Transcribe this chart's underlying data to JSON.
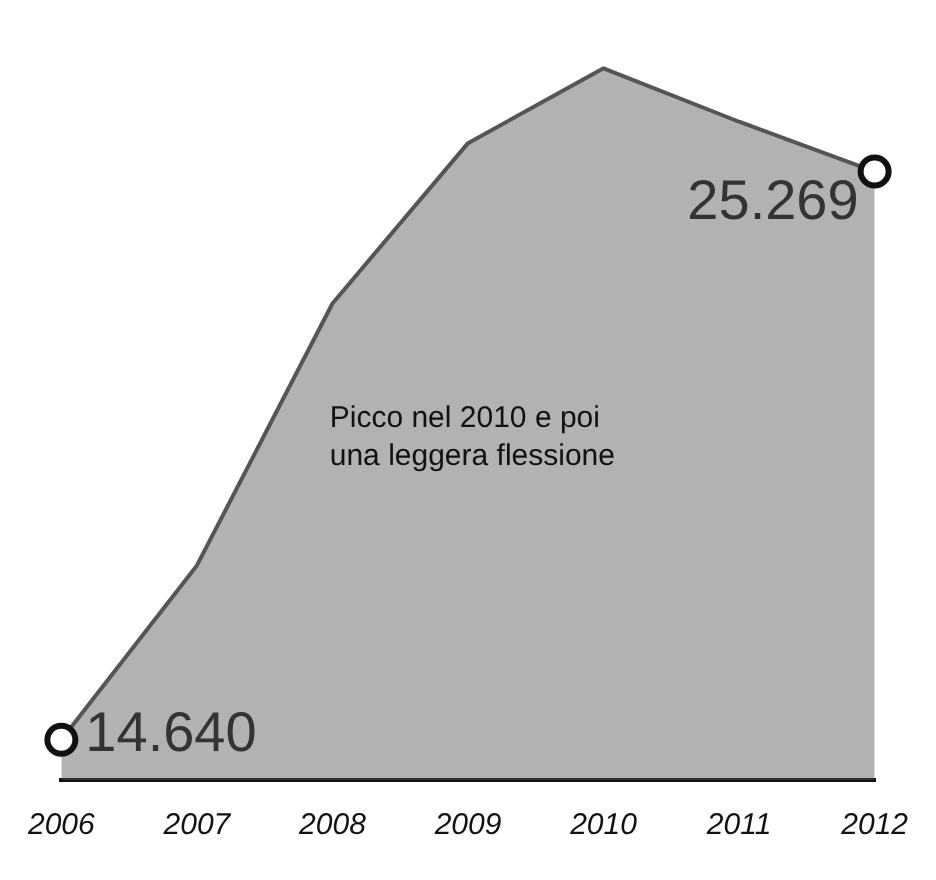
{
  "chart_data": {
    "type": "area",
    "categories": [
      "2006",
      "2007",
      "2008",
      "2009",
      "2010",
      "2011",
      "2012"
    ],
    "series": [
      {
        "color": "#555555",
        "values": [
          14640,
          17900,
          22800,
          25800,
          27200,
          26200,
          25269
        ],
        "value_labels": [
          "14.640",
          null,
          null,
          null,
          null,
          null,
          "25.269"
        ]
      }
    ],
    "annotations": [
      "Picco nel 2010 e poi\nuna leggera flessione"
    ],
    "grid": false,
    "legend": false,
    "tick_labels": "x"
  }
}
